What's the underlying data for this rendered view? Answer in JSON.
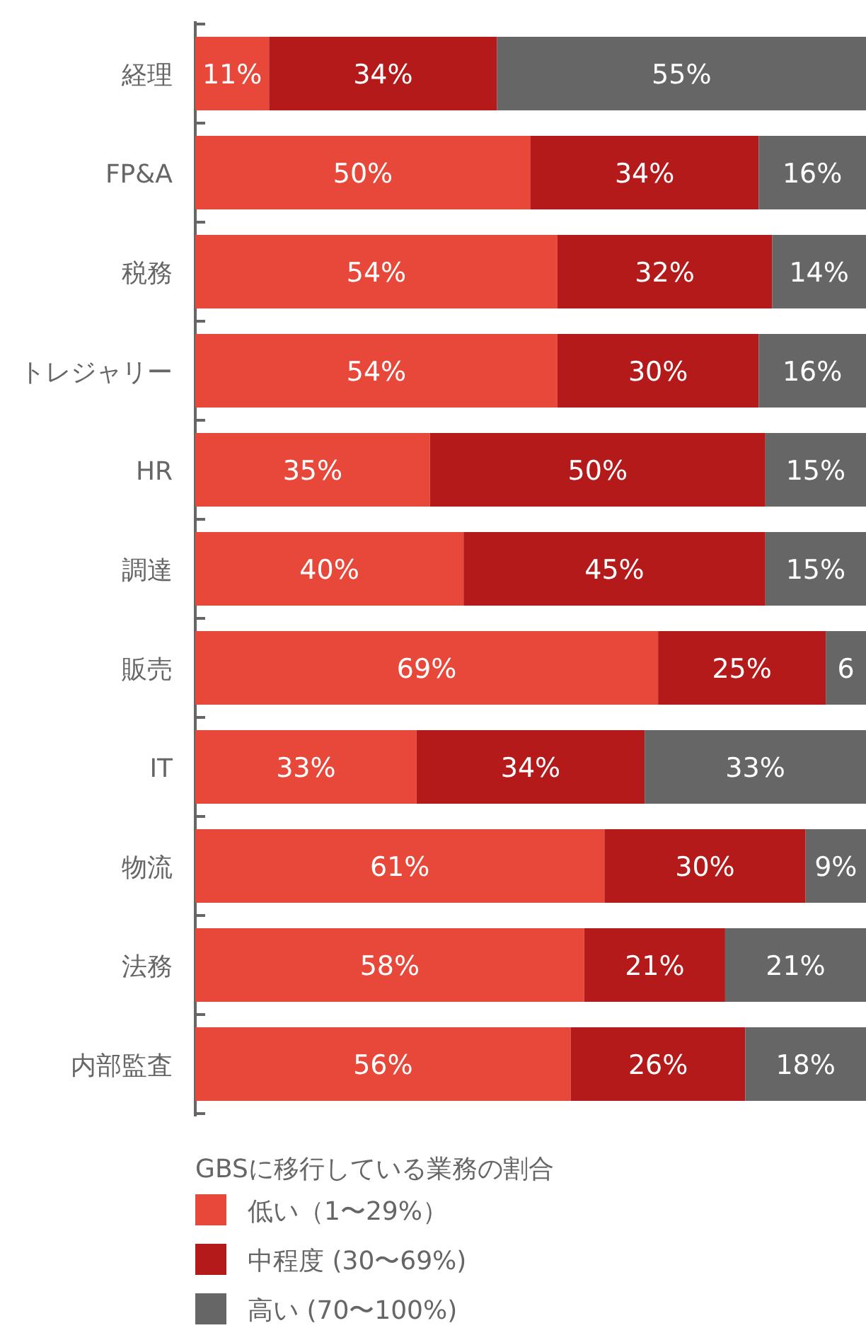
{
  "chart_data": {
    "type": "bar",
    "orientation": "horizontal",
    "stacked": true,
    "categories": [
      "経理",
      "FP&A",
      "税務",
      "トレジャリー",
      "HR",
      "調達",
      "販売",
      "IT",
      "物流",
      "法務",
      "内部監査"
    ],
    "series": [
      {
        "name": "低い（1〜29%）",
        "color": "#e8483a",
        "values": [
          11,
          50,
          54,
          54,
          35,
          40,
          69,
          33,
          61,
          58,
          56
        ],
        "value_labels": [
          "11%",
          "50%",
          "54%",
          "54%",
          "35%",
          "40%",
          "69%",
          "33%",
          "61%",
          "58%",
          "56%"
        ]
      },
      {
        "name": "中程度 (30〜69%)",
        "color": "#b51a1b",
        "values": [
          34,
          34,
          32,
          30,
          50,
          45,
          25,
          34,
          30,
          21,
          26
        ],
        "value_labels": [
          "34%",
          "34%",
          "32%",
          "30%",
          "50%",
          "45%",
          "25%",
          "34%",
          "30%",
          "21%",
          "26%"
        ]
      },
      {
        "name": "高い (70〜100%)",
        "color": "#666666",
        "values": [
          55,
          16,
          14,
          16,
          15,
          15,
          6,
          33,
          9,
          21,
          18
        ],
        "value_labels": [
          "55%",
          "16%",
          "14%",
          "16%",
          "15%",
          "15%",
          "6",
          "33%",
          "9%",
          "21%",
          "18%"
        ]
      }
    ],
    "legend": "bottom",
    "legend_title": "GBSに移行している業務の割合"
  }
}
